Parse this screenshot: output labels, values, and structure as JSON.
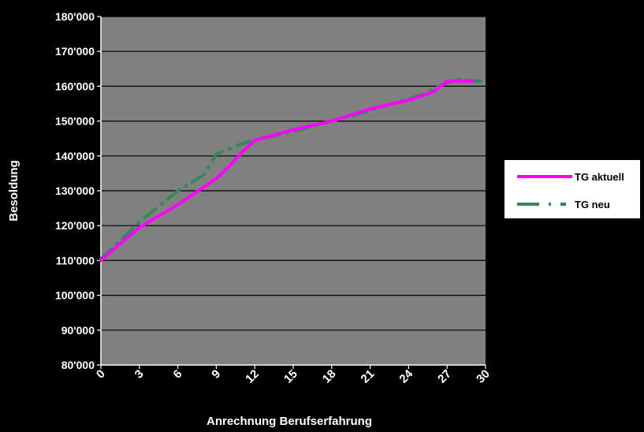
{
  "chart_data": {
    "type": "line",
    "xlabel": "Anrechnung Berufserfahrung",
    "ylabel": "Besoldung",
    "xlim": [
      0,
      30
    ],
    "ylim": [
      80000,
      180000
    ],
    "x_ticks": [
      0,
      3,
      6,
      9,
      12,
      15,
      18,
      21,
      24,
      27,
      30
    ],
    "y_ticks": [
      {
        "value": 80000,
        "label": "80'000"
      },
      {
        "value": 90000,
        "label": "90'000"
      },
      {
        "value": 100000,
        "label": "100'000"
      },
      {
        "value": 110000,
        "label": "110'000"
      },
      {
        "value": 120000,
        "label": "120'000"
      },
      {
        "value": 130000,
        "label": "130'000"
      },
      {
        "value": 140000,
        "label": "140'000"
      },
      {
        "value": 150000,
        "label": "150'000"
      },
      {
        "value": 160000,
        "label": "160'000"
      },
      {
        "value": 170000,
        "label": "170'000"
      },
      {
        "value": 180000,
        "label": "180'000"
      }
    ],
    "grid": "horizontal",
    "legend_position": "right",
    "colors": {
      "background": "#000000",
      "plot_background": "#808080",
      "legend_background": "#ffffff",
      "gridline": "#000000",
      "axis": "#ffffff"
    },
    "series": [
      {
        "name": "TG aktuell",
        "color": "#ff00ff",
        "style": "solid",
        "x": [
          0,
          3,
          6,
          8,
          9,
          10,
          11,
          12,
          15,
          18,
          21,
          24,
          26,
          27,
          28,
          29
        ],
        "y": [
          110000,
          119500,
          126000,
          131000,
          133500,
          137000,
          141000,
          144500,
          147500,
          150000,
          153500,
          156000,
          158500,
          161500,
          161500,
          161500
        ]
      },
      {
        "name": "TG neu",
        "color": "#2e8b57",
        "style": "dash-dot",
        "x": [
          0,
          3,
          6,
          8,
          9,
          10,
          11,
          12,
          15,
          18,
          21,
          24,
          25,
          26,
          27,
          28,
          29,
          30
        ],
        "y": [
          110500,
          121000,
          130000,
          134500,
          140500,
          142000,
          143500,
          144500,
          147000,
          150000,
          153000,
          156500,
          157500,
          159500,
          161000,
          162000,
          161500,
          161500
        ]
      }
    ]
  }
}
